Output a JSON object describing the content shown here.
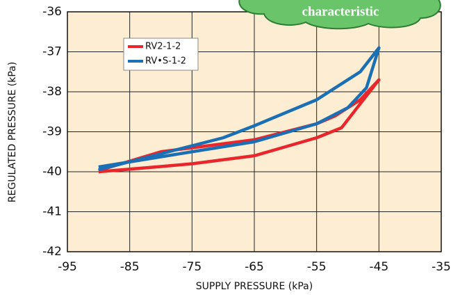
{
  "chart_data": {
    "type": "line",
    "annotation": "characteristic",
    "x_label": "SUPPLY PRESSURE (kPa)",
    "y_label": "REGULATED PRESSURE (kPa)",
    "xlim": [
      -95,
      -35
    ],
    "xticks": [
      -95,
      -85,
      -75,
      -65,
      -55,
      -45,
      -35
    ],
    "ylim": [
      -42,
      -36
    ],
    "yticks": [
      -42,
      -41,
      -40,
      -39,
      -38,
      -37,
      -36
    ],
    "grid": true,
    "legend": "upper-left",
    "series": [
      {
        "name": "RV2-1-2",
        "color": "#e8262b",
        "x": [
          -90,
          -80,
          -75,
          -65,
          -55,
          -51,
          -48,
          -45,
          -48,
          -52,
          -55,
          -65,
          -75,
          -80,
          -90
        ],
        "values": [
          -40.0,
          -39.87,
          -39.8,
          -39.6,
          -39.15,
          -38.9,
          -38.3,
          -37.7,
          -38.2,
          -38.6,
          -38.8,
          -39.2,
          -39.4,
          -39.5,
          -39.97
        ]
      },
      {
        "name": "RV•S-1-2",
        "color": "#1a6fb5",
        "x": [
          -90,
          -75,
          -65,
          -55,
          -50,
          -47,
          -45,
          -48,
          -55,
          -65,
          -70,
          -75,
          -85,
          -90
        ],
        "values": [
          -39.88,
          -39.5,
          -39.25,
          -38.8,
          -38.4,
          -37.9,
          -36.9,
          -37.5,
          -38.2,
          -38.85,
          -39.15,
          -39.35,
          -39.75,
          -39.95
        ]
      }
    ]
  }
}
